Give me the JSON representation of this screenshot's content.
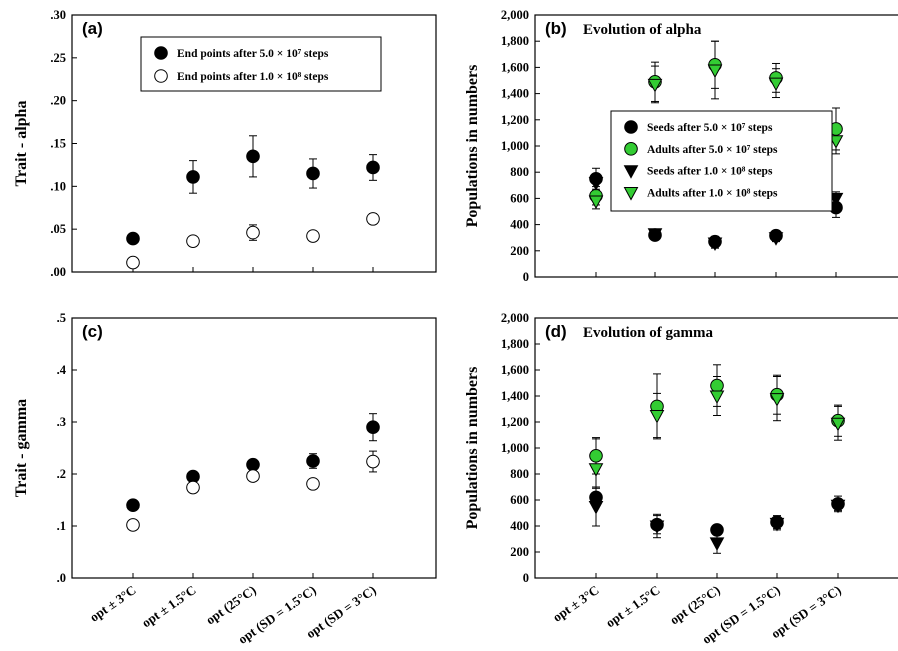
{
  "chart_data": [
    {
      "id": "a",
      "type": "scatter",
      "panel_label": "(a)",
      "title": "",
      "ylabel": "Trait - alpha",
      "xlabel": "",
      "ylim": [
        0,
        0.3
      ],
      "yticks": [
        0,
        0.05,
        0.1,
        0.15,
        0.2,
        0.25,
        0.3
      ],
      "ytick_labels": [
        ".00",
        ".05",
        ".10",
        ".15",
        ".20",
        ".25",
        ".30"
      ],
      "categories": [
        "opt ± 3°C",
        "opt ± 1.5°C",
        "opt  (25°C)",
        "opt (SD = 1.5°C)",
        "opt (SD = 3°C)"
      ],
      "show_xticklabels": false,
      "legend_position": "top-right",
      "series": [
        {
          "name": "End points after 5.0 × 10⁷ steps",
          "marker": "circle",
          "fill": "#000000",
          "values": [
            0.039,
            0.111,
            0.135,
            0.115,
            0.122
          ],
          "err": [
            0.003,
            0.019,
            0.024,
            0.017,
            0.015
          ]
        },
        {
          "name": "End points after 1.0 × 10⁸ steps",
          "marker": "circle",
          "fill": "#ffffff",
          "values": [
            0.011,
            0.036,
            0.046,
            0.042,
            0.062
          ],
          "err": [
            0.003,
            0.004,
            0.009,
            0.003,
            0.006
          ]
        }
      ]
    },
    {
      "id": "b",
      "type": "scatter",
      "panel_label": "(b)",
      "title": "Evolution of alpha",
      "ylabel": "Populations in numbers",
      "xlabel": "",
      "ylim": [
        0,
        2000
      ],
      "yticks": [
        0,
        200,
        400,
        600,
        800,
        1000,
        1200,
        1400,
        1600,
        1800,
        2000
      ],
      "ytick_labels": [
        "0",
        "200",
        "400",
        "600",
        "800",
        "1,000",
        "1,200",
        "1,400",
        "1,600",
        "1,800",
        "2,000"
      ],
      "categories": [
        "opt ± 3°C",
        "opt ± 1.5°C",
        "opt  (25°C)",
        "opt (SD = 1.5°C)",
        "opt (SD = 3°C)"
      ],
      "show_xticklabels": false,
      "legend_position": "center-right",
      "series": [
        {
          "name": "Seeds after 5.0 × 10⁷ steps",
          "marker": "circle",
          "fill": "#000000",
          "values": [
            750,
            320,
            270,
            315,
            530
          ],
          "err": [
            80,
            30,
            40,
            25,
            75
          ]
        },
        {
          "name": "Adults after 5.0 × 10⁷ steps",
          "marker": "circle",
          "fill": "#33cc33",
          "values": [
            620,
            1490,
            1620,
            1520,
            1130
          ],
          "err": [
            70,
            150,
            180,
            110,
            160
          ]
        },
        {
          "name": "Seeds after 1.0 × 10⁸ steps",
          "marker": "triangle",
          "fill": "#000000",
          "values": [
            720,
            330,
            260,
            300,
            600
          ],
          "err": [
            60,
            30,
            40,
            30,
            50
          ]
        },
        {
          "name": "Adults after 1.0 × 10⁸ steps",
          "marker": "triangle",
          "fill": "#33cc33",
          "values": [
            580,
            1470,
            1580,
            1480,
            1040
          ],
          "err": [
            60,
            140,
            220,
            110,
            100
          ]
        }
      ]
    },
    {
      "id": "c",
      "type": "scatter",
      "panel_label": "(c)",
      "title": "",
      "ylabel": "Trait - gamma",
      "xlabel": "",
      "ylim": [
        0,
        0.5
      ],
      "yticks": [
        0,
        0.1,
        0.2,
        0.3,
        0.4,
        0.5
      ],
      "ytick_labels": [
        ".0",
        ".1",
        ".2",
        ".3",
        ".4",
        ".5"
      ],
      "categories": [
        "opt ± 3°C",
        "opt ± 1.5°C",
        "opt  (25°C)",
        "opt (SD = 1.5°C)",
        "opt (SD = 3°C)"
      ],
      "show_xticklabels": true,
      "legend_position": "none",
      "series": [
        {
          "name": "",
          "marker": "circle",
          "fill": "#000000",
          "values": [
            0.14,
            0.195,
            0.218,
            0.225,
            0.29
          ],
          "err": [
            0.004,
            0.006,
            0.006,
            0.014,
            0.026
          ]
        },
        {
          "name": "",
          "marker": "circle",
          "fill": "#ffffff",
          "values": [
            0.102,
            0.174,
            0.196,
            0.181,
            0.224
          ],
          "err": [
            0.004,
            0.005,
            0.005,
            0.004,
            0.02
          ]
        }
      ]
    },
    {
      "id": "d",
      "type": "scatter",
      "panel_label": "(d)",
      "title": "Evolution of gamma",
      "ylabel": "Populations in numbers",
      "xlabel": "",
      "ylim": [
        0,
        2000
      ],
      "yticks": [
        0,
        200,
        400,
        600,
        800,
        1000,
        1200,
        1400,
        1600,
        1800,
        2000
      ],
      "ytick_labels": [
        "0",
        "200",
        "400",
        "600",
        "800",
        "1,000",
        "1,200",
        "1,400",
        "1,600",
        "1,800",
        "2,000"
      ],
      "categories": [
        "opt ± 3°C",
        "opt ± 1.5°C",
        "opt  (25°C)",
        "opt (SD = 1.5°C)",
        "opt (SD = 3°C)"
      ],
      "show_xticklabels": true,
      "legend_position": "none",
      "series": [
        {
          "name": "",
          "marker": "circle",
          "fill": "#000000",
          "values": [
            620,
            410,
            370,
            430,
            570
          ],
          "err": [
            70,
            70,
            30,
            50,
            60
          ]
        },
        {
          "name": "",
          "marker": "circle",
          "fill": "#33cc33",
          "values": [
            940,
            1320,
            1480,
            1410,
            1210
          ],
          "err": [
            140,
            250,
            160,
            150,
            120
          ]
        },
        {
          "name": "",
          "marker": "triangle",
          "fill": "#000000",
          "values": [
            550,
            400,
            270,
            420,
            560
          ],
          "err": [
            150,
            90,
            80,
            50,
            40
          ]
        },
        {
          "name": "",
          "marker": "triangle",
          "fill": "#33cc33",
          "values": [
            840,
            1250,
            1400,
            1380,
            1190
          ],
          "err": [
            230,
            170,
            150,
            170,
            130
          ]
        }
      ]
    }
  ]
}
